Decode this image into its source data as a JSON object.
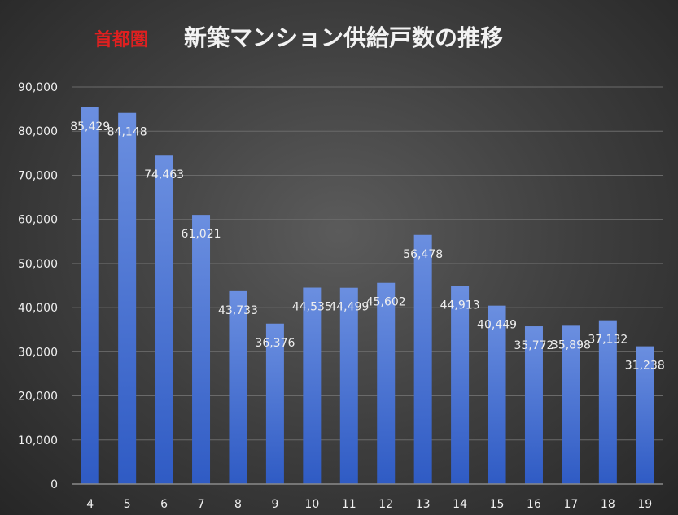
{
  "chart_data": {
    "type": "bar",
    "title_prefix": "首都圏",
    "title": "新築マンション供給戸数の推移",
    "xlabel": "",
    "ylabel": "",
    "categories": [
      "4",
      "5",
      "6",
      "7",
      "8",
      "9",
      "10",
      "11",
      "12",
      "13",
      "14",
      "15",
      "16",
      "17",
      "18",
      "19"
    ],
    "values": [
      85429,
      84148,
      74463,
      61021,
      43733,
      36376,
      44535,
      44499,
      45602,
      56478,
      44913,
      40449,
      35772,
      35898,
      37132,
      31238
    ],
    "value_labels": [
      "85,429",
      "84,148",
      "74,463",
      "61,021",
      "43,733",
      "36,376",
      "44,535",
      "44,499",
      "45,602",
      "56,478",
      "44,913",
      "40,449",
      "35,772",
      "35,898",
      "37,132",
      "31,238"
    ],
    "y_ticks": [
      "0",
      "10,000",
      "20,000",
      "30,000",
      "40,000",
      "50,000",
      "60,000",
      "70,000",
      "80,000",
      "90,000"
    ],
    "ylim": [
      0,
      90000
    ],
    "grid": true,
    "legend": "none",
    "colors": {
      "bar_top": "#6b8fe0",
      "bar_bottom": "#2f5bc4",
      "title_prefix": "#e02020",
      "title": "#f2f2f2",
      "tick_label": "#f0f0f0",
      "data_label": "#eeeeee",
      "gridline": "#6a6a6a",
      "axis_line": "#8a8a8a"
    }
  }
}
